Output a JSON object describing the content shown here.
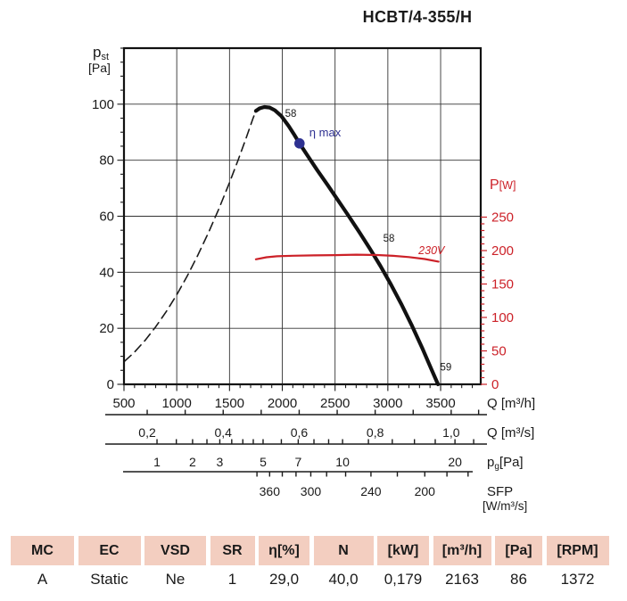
{
  "title": "HCBT/4-355/H",
  "chart_data": {
    "type": "line",
    "title": "HCBT/4-355/H",
    "x_axis": {
      "label": "Q [m³/h]",
      "min": 500,
      "max": 3880,
      "major_ticks": [
        500,
        1000,
        1500,
        2000,
        2500,
        3000,
        3500
      ],
      "minor_step": 100,
      "grid": true
    },
    "y_left_axis": {
      "label_main": "p",
      "label_sub": "st",
      "label_unit": "[Pa]",
      "min": 0,
      "max": 120,
      "major_ticks": [
        0,
        20,
        40,
        60,
        80,
        100
      ],
      "minor_step": 5,
      "grid": true
    },
    "y_right_axis": {
      "label_main": "P",
      "label_unit": "[W]",
      "min": 0,
      "max": 250,
      "major_ticks": [
        0,
        50,
        100,
        150,
        200,
        250
      ],
      "minor_step": 10,
      "color": "#cc2128"
    },
    "series": [
      {
        "name": "surge-line",
        "style": "dashed",
        "axis": "left",
        "color": "#1a1a1a",
        "points": [
          [
            505,
            8.2
          ],
          [
            600,
            11.5
          ],
          [
            700,
            15.7
          ],
          [
            800,
            20.5
          ],
          [
            900,
            25.9
          ],
          [
            1000,
            32
          ],
          [
            1100,
            38.7
          ],
          [
            1200,
            46.1
          ],
          [
            1300,
            54.1
          ],
          [
            1400,
            62.7
          ],
          [
            1500,
            72
          ],
          [
            1580,
            79.9
          ],
          [
            1660,
            88.2
          ],
          [
            1720,
            94.7
          ],
          [
            1750,
            97.6
          ]
        ]
      },
      {
        "name": "fan-curve",
        "style": "solid-thick",
        "axis": "left",
        "color": "#111111",
        "points": [
          [
            1750,
            97.6
          ],
          [
            1785,
            98.5
          ],
          [
            1830,
            99
          ],
          [
            1880,
            98.8
          ],
          [
            1930,
            97.8
          ],
          [
            1990,
            95.8
          ],
          [
            2060,
            92.2
          ],
          [
            2115,
            89
          ],
          [
            2163,
            86
          ],
          [
            2240,
            81.6
          ],
          [
            2330,
            76.5
          ],
          [
            2430,
            71.1
          ],
          [
            2530,
            65.6
          ],
          [
            2630,
            60
          ],
          [
            2730,
            54.3
          ],
          [
            2830,
            48.4
          ],
          [
            2930,
            42.2
          ],
          [
            3030,
            35.6
          ],
          [
            3130,
            28.5
          ],
          [
            3230,
            20.8
          ],
          [
            3330,
            12.6
          ],
          [
            3410,
            5.6
          ],
          [
            3475,
            0
          ]
        ]
      },
      {
        "name": "power-curve-230V",
        "style": "solid",
        "axis": "right",
        "color": "#cc2128",
        "points": [
          [
            1750,
            187
          ],
          [
            1850,
            190
          ],
          [
            1950,
            191.5
          ],
          [
            2100,
            192.3
          ],
          [
            2300,
            192.8
          ],
          [
            2500,
            193.2
          ],
          [
            2700,
            193.8
          ],
          [
            2900,
            193.3
          ],
          [
            3050,
            192.2
          ],
          [
            3200,
            190.3
          ],
          [
            3350,
            187.3
          ],
          [
            3480,
            183.5
          ]
        ]
      }
    ],
    "operating_point": {
      "q_m3h": 2163,
      "p_st_pa": 86,
      "label": "η max",
      "color": "#2e3191"
    },
    "annotations": [
      {
        "text": "58",
        "q": 2080,
        "v": 95.5,
        "axis": "left",
        "color": "#1a1a1a",
        "anchor": "middle",
        "italic": false
      },
      {
        "text": "58",
        "q": 3010,
        "v": 51,
        "axis": "left",
        "color": "#1a1a1a",
        "anchor": "middle",
        "italic": false
      },
      {
        "text": "59",
        "q": 3495,
        "v": 5,
        "axis": "left",
        "color": "#1a1a1a",
        "anchor": "start",
        "italic": false
      },
      {
        "text": "230V",
        "q": 3290,
        "v": 194.5,
        "axis": "right",
        "color": "#cc2128",
        "anchor": "start",
        "italic": true
      }
    ],
    "rulers": [
      {
        "name": "flow-m3s",
        "unit_label": "Q [m³/s]",
        "tick_dir": "up",
        "ticks": [
          {
            "q": 720,
            "label": "0,2"
          },
          {
            "q": 1080,
            "label": ""
          },
          {
            "q": 1440,
            "label": "0,4"
          },
          {
            "q": 1800,
            "label": ""
          },
          {
            "q": 2160,
            "label": "0,6"
          },
          {
            "q": 2520,
            "label": ""
          },
          {
            "q": 2880,
            "label": "0,8"
          },
          {
            "q": 3240,
            "label": ""
          },
          {
            "q": 3600,
            "label": "1,0"
          },
          {
            "q": 3860,
            "label": ""
          }
        ]
      },
      {
        "name": "dynamic-pressure",
        "unit_main": "p",
        "unit_sub": "g",
        "unit_rest": "[Pa]",
        "tick_dir": "up",
        "ticks": [
          {
            "q": 813,
            "label": "1"
          },
          {
            "q": 996,
            "label": ""
          },
          {
            "q": 1150,
            "label": "2"
          },
          {
            "q": 1286,
            "label": ""
          },
          {
            "q": 1408,
            "label": "3"
          },
          {
            "q": 1521,
            "label": ""
          },
          {
            "q": 1626,
            "label": ""
          },
          {
            "q": 1725,
            "label": ""
          },
          {
            "q": 1818,
            "label": "5"
          },
          {
            "q": 1991,
            "label": ""
          },
          {
            "q": 2151,
            "label": "7"
          },
          {
            "q": 2300,
            "label": ""
          },
          {
            "q": 2439,
            "label": ""
          },
          {
            "q": 2571,
            "label": "10"
          },
          {
            "q": 2816,
            "label": ""
          },
          {
            "q": 3042,
            "label": ""
          },
          {
            "q": 3252,
            "label": ""
          },
          {
            "q": 3449,
            "label": ""
          },
          {
            "q": 3636,
            "label": "20"
          },
          {
            "q": 3813,
            "label": ""
          }
        ]
      },
      {
        "name": "sfp",
        "unit_label": "SFP",
        "unit_label2": "[W/m³/s]",
        "tick_dir": "down",
        "ticks": [
          {
            "q": 1760,
            "label": ""
          },
          {
            "q": 1880,
            "label": "360"
          },
          {
            "q": 2000,
            "label": ""
          },
          {
            "q": 2130,
            "label": ""
          },
          {
            "q": 2270,
            "label": "300"
          },
          {
            "q": 2420,
            "label": ""
          },
          {
            "q": 2600,
            "label": ""
          },
          {
            "q": 2840,
            "label": "240"
          },
          {
            "q": 3090,
            "label": ""
          },
          {
            "q": 3350,
            "label": "200"
          },
          {
            "q": 3560,
            "label": ""
          },
          {
            "q": 3760,
            "label": ""
          }
        ]
      }
    ]
  },
  "table": {
    "columns": [
      {
        "header": "MC",
        "value": "A"
      },
      {
        "header": "EC",
        "value": "Static"
      },
      {
        "header": "VSD",
        "value": "Ne"
      },
      {
        "header": "SR",
        "value": "1"
      },
      {
        "header": "η[%]",
        "value": "29,0"
      },
      {
        "header": "N",
        "value": "40,0"
      },
      {
        "header": "[kW]",
        "value": "0,179"
      },
      {
        "header": "[m³/h]",
        "value": "2163"
      },
      {
        "header": "[Pa]",
        "value": "86"
      },
      {
        "header": "[RPM]",
        "value": "1372"
      }
    ],
    "header_bg": "#f3cec0"
  }
}
